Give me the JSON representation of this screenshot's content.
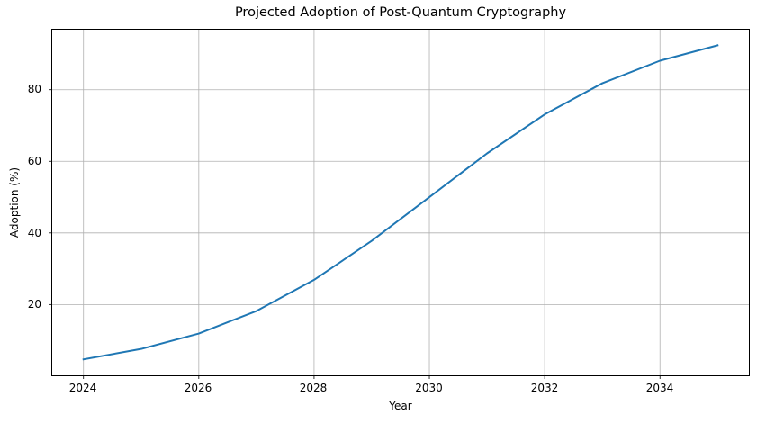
{
  "chart_data": {
    "type": "line",
    "title": "Projected Adoption of Post-Quantum Cryptography",
    "xlabel": "Year",
    "ylabel": "Adoption (%)",
    "x": [
      2024,
      2025,
      2026,
      2027,
      2028,
      2029,
      2030,
      2031,
      2032,
      2033,
      2034,
      2035
    ],
    "series": [
      {
        "name": "Adoption (%)",
        "color": "#1f77b4",
        "values": [
          4.7,
          7.6,
          11.9,
          18.2,
          26.9,
          37.8,
          50.0,
          62.2,
          73.1,
          81.8,
          88.1,
          92.4
        ]
      }
    ],
    "xticks": [
      "2024",
      "2026",
      "2028",
      "2030",
      "2032",
      "2034"
    ],
    "yticks": [
      "20",
      "40",
      "60",
      "80"
    ],
    "xlim": [
      2023.45,
      2035.55
    ],
    "ylim": [
      0.1,
      96.9
    ],
    "grid": true,
    "legend": false
  }
}
